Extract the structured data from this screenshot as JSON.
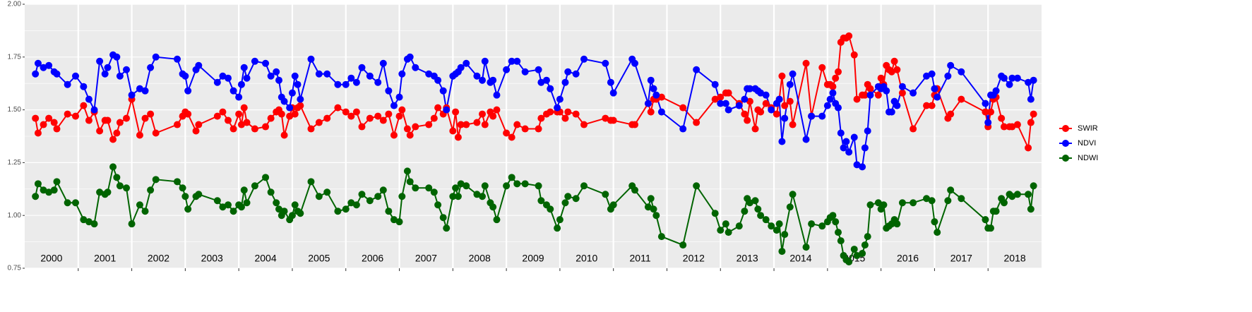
{
  "chart_data": {
    "type": "line",
    "x": [
      2000.2,
      2000.25,
      2000.35,
      2000.45,
      2000.55,
      2000.6,
      2000.8,
      2000.95,
      2001.1,
      2001.2,
      2001.3,
      2001.4,
      2001.5,
      2001.55,
      2001.65,
      2001.72,
      2001.78,
      2001.9,
      2002.0,
      2002.15,
      2002.25,
      2002.35,
      2002.45,
      2002.85,
      2002.95,
      2003.0,
      2003.05,
      2003.2,
      2003.25,
      2003.6,
      2003.7,
      2003.8,
      2003.9,
      2004.0,
      2004.05,
      2004.1,
      2004.15,
      2004.3,
      2004.5,
      2004.6,
      2004.7,
      2004.75,
      2004.8,
      2004.85,
      2004.95,
      2005.0,
      2005.05,
      2005.1,
      2005.15,
      2005.35,
      2005.5,
      2005.65,
      2005.85,
      2006.0,
      2006.1,
      2006.2,
      2006.3,
      2006.45,
      2006.6,
      2006.7,
      2006.8,
      2006.9,
      2007.0,
      2007.05,
      2007.15,
      2007.2,
      2007.3,
      2007.55,
      2007.65,
      2007.72,
      2007.82,
      2007.88,
      2008.0,
      2008.05,
      2008.1,
      2008.15,
      2008.25,
      2008.45,
      2008.55,
      2008.6,
      2008.7,
      2008.75,
      2008.82,
      2009.0,
      2009.1,
      2009.2,
      2009.35,
      2009.6,
      2009.65,
      2009.75,
      2009.82,
      2009.95,
      2010.0,
      2010.1,
      2010.15,
      2010.3,
      2010.45,
      2010.85,
      2010.95,
      2011.0,
      2011.35,
      2011.4,
      2011.65,
      2011.7,
      2011.75,
      2011.8,
      2011.9,
      2012.3,
      2012.55,
      2012.9,
      2013.0,
      2013.1,
      2013.15,
      2013.35,
      2013.45,
      2013.5,
      2013.55,
      2013.65,
      2013.7,
      2013.75,
      2013.85,
      2013.95,
      2014.05,
      2014.1,
      2014.15,
      2014.2,
      2014.3,
      2014.35,
      2014.6,
      2014.7,
      2014.9,
      2015.0,
      2015.05,
      2015.1,
      2015.15,
      2015.2,
      2015.25,
      2015.3,
      2015.35,
      2015.4,
      2015.5,
      2015.55,
      2015.65,
      2015.7,
      2015.75,
      2015.8,
      2015.95,
      2016.0,
      2016.05,
      2016.1,
      2016.15,
      2016.2,
      2016.25,
      2016.3,
      2016.4,
      2016.6,
      2016.85,
      2016.95,
      2017.0,
      2017.05,
      2017.25,
      2017.3,
      2017.5,
      2017.95,
      2018.0,
      2018.05,
      2018.1,
      2018.15,
      2018.25,
      2018.3,
      2018.4,
      2018.45,
      2018.55,
      2018.75,
      2018.8,
      2018.85
    ],
    "series": [
      {
        "name": "SWIR",
        "color": "#ff0000",
        "values": [
          1.46,
          1.39,
          1.43,
          1.46,
          1.44,
          1.41,
          1.48,
          1.47,
          1.52,
          1.45,
          1.49,
          1.4,
          1.45,
          1.45,
          1.36,
          1.39,
          1.44,
          1.46,
          1.55,
          1.38,
          1.46,
          1.48,
          1.39,
          1.43,
          1.47,
          1.49,
          1.48,
          1.4,
          1.43,
          1.47,
          1.49,
          1.45,
          1.41,
          1.48,
          1.43,
          1.51,
          1.44,
          1.41,
          1.42,
          1.46,
          1.49,
          1.5,
          1.48,
          1.38,
          1.47,
          1.51,
          1.48,
          1.51,
          1.52,
          1.41,
          1.44,
          1.46,
          1.51,
          1.49,
          1.47,
          1.49,
          1.42,
          1.46,
          1.47,
          1.45,
          1.48,
          1.38,
          1.47,
          1.5,
          1.41,
          1.38,
          1.42,
          1.43,
          1.46,
          1.51,
          1.48,
          1.51,
          1.4,
          1.49,
          1.37,
          1.43,
          1.43,
          1.44,
          1.48,
          1.43,
          1.49,
          1.47,
          1.5,
          1.39,
          1.37,
          1.43,
          1.41,
          1.41,
          1.46,
          1.48,
          1.49,
          1.49,
          1.49,
          1.46,
          1.49,
          1.48,
          1.43,
          1.46,
          1.45,
          1.45,
          1.43,
          1.43,
          1.53,
          1.49,
          1.55,
          1.55,
          1.56,
          1.51,
          1.44,
          1.55,
          1.56,
          1.58,
          1.58,
          1.53,
          1.48,
          1.45,
          1.54,
          1.41,
          1.5,
          1.49,
          1.53,
          1.51,
          1.48,
          1.55,
          1.66,
          1.52,
          1.54,
          1.43,
          1.72,
          1.47,
          1.7,
          1.62,
          1.62,
          1.61,
          1.65,
          1.68,
          1.82,
          1.84,
          1.84,
          1.85,
          1.76,
          1.55,
          1.57,
          1.57,
          1.62,
          1.6,
          1.57,
          1.65,
          1.62,
          1.71,
          1.69,
          1.68,
          1.73,
          1.69,
          1.58,
          1.41,
          1.52,
          1.52,
          1.57,
          1.6,
          1.46,
          1.48,
          1.55,
          1.49,
          1.42,
          1.49,
          1.55,
          1.56,
          1.46,
          1.42,
          1.42,
          1.42,
          1.43,
          1.32,
          1.44,
          1.48
        ]
      },
      {
        "name": "NDVI",
        "color": "#0000ff",
        "values": [
          1.67,
          1.72,
          1.7,
          1.71,
          1.68,
          1.67,
          1.62,
          1.66,
          1.61,
          1.55,
          1.5,
          1.73,
          1.67,
          1.7,
          1.76,
          1.75,
          1.66,
          1.69,
          1.57,
          1.6,
          1.59,
          1.7,
          1.75,
          1.74,
          1.67,
          1.66,
          1.59,
          1.69,
          1.71,
          1.63,
          1.66,
          1.65,
          1.59,
          1.56,
          1.62,
          1.7,
          1.65,
          1.73,
          1.72,
          1.66,
          1.68,
          1.64,
          1.56,
          1.54,
          1.51,
          1.58,
          1.66,
          1.62,
          1.55,
          1.74,
          1.67,
          1.67,
          1.62,
          1.62,
          1.65,
          1.63,
          1.7,
          1.66,
          1.63,
          1.72,
          1.59,
          1.52,
          1.56,
          1.67,
          1.74,
          1.75,
          1.7,
          1.67,
          1.66,
          1.64,
          1.59,
          1.5,
          1.66,
          1.67,
          1.68,
          1.7,
          1.72,
          1.66,
          1.64,
          1.73,
          1.63,
          1.64,
          1.57,
          1.69,
          1.73,
          1.73,
          1.68,
          1.69,
          1.63,
          1.64,
          1.6,
          1.51,
          1.55,
          1.63,
          1.68,
          1.67,
          1.74,
          1.72,
          1.63,
          1.58,
          1.74,
          1.72,
          1.53,
          1.64,
          1.6,
          1.57,
          1.49,
          1.41,
          1.69,
          1.62,
          1.53,
          1.53,
          1.5,
          1.52,
          1.55,
          1.6,
          1.6,
          1.6,
          1.59,
          1.58,
          1.57,
          1.5,
          1.53,
          1.55,
          1.35,
          1.46,
          1.62,
          1.67,
          1.36,
          1.47,
          1.47,
          1.52,
          1.55,
          1.58,
          1.53,
          1.51,
          1.39,
          1.32,
          1.35,
          1.3,
          1.37,
          1.24,
          1.23,
          1.32,
          1.4,
          1.57,
          1.61,
          1.6,
          1.61,
          1.59,
          1.49,
          1.49,
          1.54,
          1.52,
          1.61,
          1.58,
          1.66,
          1.67,
          1.6,
          1.56,
          1.66,
          1.71,
          1.68,
          1.53,
          1.44,
          1.57,
          1.57,
          1.59,
          1.66,
          1.65,
          1.62,
          1.65,
          1.65,
          1.63,
          1.55,
          1.64
        ]
      },
      {
        "name": "NDWI",
        "color": "#006400",
        "values": [
          1.09,
          1.15,
          1.12,
          1.11,
          1.12,
          1.16,
          1.06,
          1.06,
          0.98,
          0.97,
          0.96,
          1.11,
          1.1,
          1.11,
          1.23,
          1.18,
          1.14,
          1.13,
          0.96,
          1.05,
          1.02,
          1.12,
          1.17,
          1.16,
          1.13,
          1.09,
          1.03,
          1.09,
          1.1,
          1.07,
          1.04,
          1.05,
          1.02,
          1.05,
          1.04,
          1.12,
          1.06,
          1.14,
          1.18,
          1.11,
          1.06,
          1.03,
          1.0,
          1.02,
          0.98,
          1.0,
          1.05,
          1.02,
          1.01,
          1.16,
          1.09,
          1.11,
          1.02,
          1.03,
          1.06,
          1.05,
          1.1,
          1.07,
          1.09,
          1.12,
          1.02,
          0.98,
          0.97,
          1.09,
          1.21,
          1.16,
          1.13,
          1.13,
          1.11,
          1.05,
          0.99,
          0.94,
          1.09,
          1.13,
          1.09,
          1.15,
          1.14,
          1.1,
          1.09,
          1.14,
          1.06,
          1.04,
          0.98,
          1.14,
          1.18,
          1.15,
          1.15,
          1.14,
          1.07,
          1.05,
          1.03,
          0.94,
          0.98,
          1.06,
          1.09,
          1.08,
          1.14,
          1.1,
          1.03,
          1.05,
          1.14,
          1.12,
          1.04,
          1.08,
          1.03,
          1.0,
          0.9,
          0.86,
          1.14,
          1.01,
          0.93,
          0.96,
          0.92,
          0.95,
          1.02,
          1.08,
          1.06,
          1.07,
          1.03,
          1.0,
          0.98,
          0.95,
          0.93,
          0.96,
          0.83,
          0.91,
          1.04,
          1.1,
          0.85,
          0.96,
          0.95,
          0.97,
          0.99,
          1.0,
          0.97,
          0.92,
          0.88,
          0.81,
          0.79,
          0.78,
          0.84,
          0.81,
          0.82,
          0.86,
          0.9,
          1.05,
          1.06,
          1.03,
          1.05,
          0.94,
          0.95,
          0.96,
          0.98,
          0.96,
          1.06,
          1.06,
          1.08,
          1.07,
          0.97,
          0.92,
          1.07,
          1.12,
          1.08,
          0.98,
          0.94,
          0.94,
          1.02,
          1.02,
          1.08,
          1.06,
          1.1,
          1.09,
          1.1,
          1.1,
          1.03,
          1.14
        ]
      }
    ],
    "xlim": [
      2000,
      2019
    ],
    "xticks": [
      2001,
      2002,
      2003,
      2004,
      2005,
      2006,
      2007,
      2008,
      2009,
      2010,
      2011,
      2012,
      2013,
      2014,
      2015,
      2016,
      2017,
      2018
    ],
    "ylim": [
      0.75,
      2
    ],
    "yticks": [
      0.75,
      {
        "value": 1,
        "label": "1.00"
      },
      1.25,
      {
        "value": 1.5,
        "label": "1.50"
      },
      1.75,
      {
        "value": 2,
        "label": "2.00"
      }
    ],
    "annotations": [
      {
        "text": "2000",
        "x": 2000.5
      },
      {
        "text": "2001",
        "x": 2001.5
      },
      {
        "text": "2002",
        "x": 2002.5
      },
      {
        "text": "2003",
        "x": 2003.5
      },
      {
        "text": "2004",
        "x": 2004.5
      },
      {
        "text": "2005",
        "x": 2005.5
      },
      {
        "text": "2006",
        "x": 2006.5
      },
      {
        "text": "2007",
        "x": 2007.5
      },
      {
        "text": "2008",
        "x": 2008.5
      },
      {
        "text": "2009",
        "x": 2009.5
      },
      {
        "text": "2010",
        "x": 2010.5
      },
      {
        "text": "2011",
        "x": 2011.5
      },
      {
        "text": "2012",
        "x": 2012.5
      },
      {
        "text": "2013",
        "x": 2013.5
      },
      {
        "text": "2014",
        "x": 2014.5
      },
      {
        "text": "2015",
        "x": 2015.5
      },
      {
        "text": "2016",
        "x": 2016.5
      },
      {
        "text": "2017",
        "x": 2017.5
      },
      {
        "text": "2018",
        "x": 2018.5
      }
    ],
    "grid": true,
    "legend": "right"
  }
}
